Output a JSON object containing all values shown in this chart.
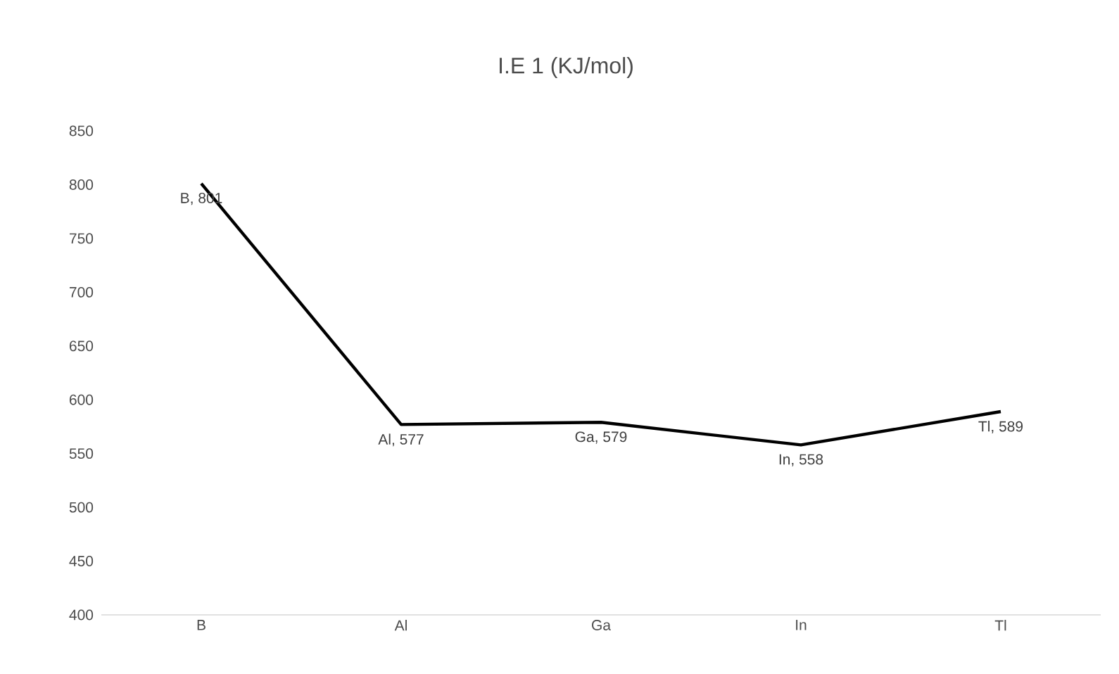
{
  "chart_data": {
    "type": "line",
    "title": "I.E 1 (KJ/mol)",
    "categories": [
      "B",
      "Al",
      "Ga",
      "In",
      "Tl"
    ],
    "values": [
      801,
      577,
      579,
      558,
      589
    ],
    "value_labels": [
      "B, 801",
      "Al, 577",
      "Ga, 579",
      "In, 558",
      "Tl, 589"
    ],
    "color": "#000000",
    "ylim": [
      400,
      850
    ],
    "yticks": [
      400,
      450,
      500,
      550,
      600,
      650,
      700,
      750,
      800,
      850
    ],
    "grid": false,
    "marker": "none",
    "line_style": "solid"
  }
}
